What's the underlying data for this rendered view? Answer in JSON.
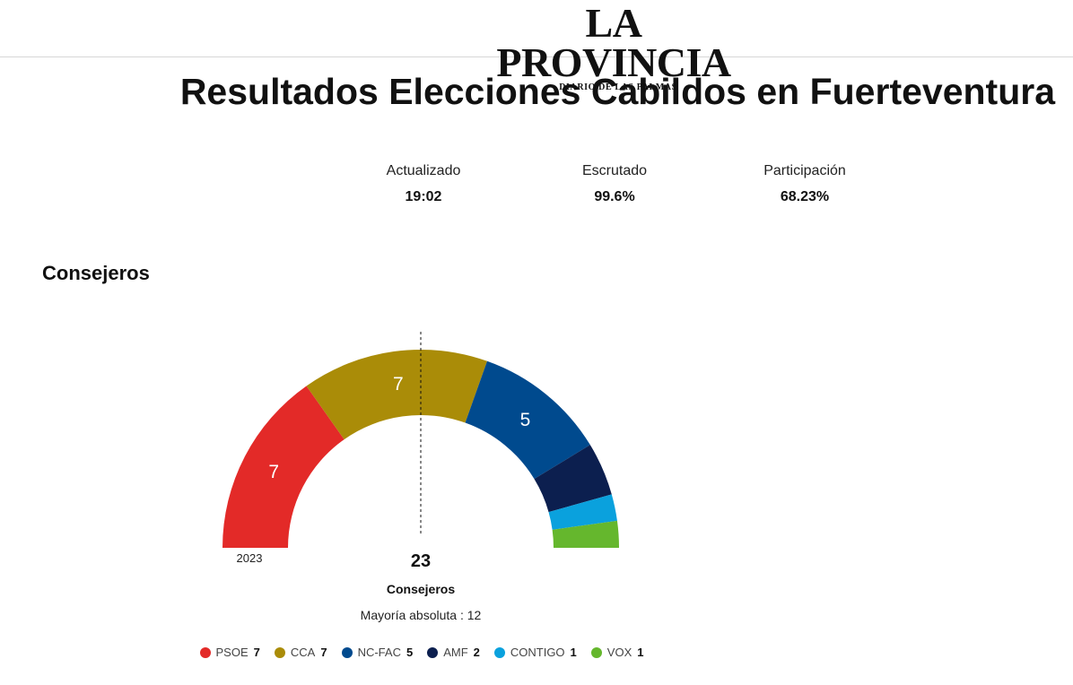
{
  "header": {
    "logo_text": "LA PROVINCIA",
    "logo_subtext": "DIARIO DE LAS PALMAS"
  },
  "page_title": "Resultados Elecciones Cabildos en Fuerteventura",
  "stats": [
    {
      "label": "Actualizado",
      "value": "19:02"
    },
    {
      "label": "Escrutado",
      "value": "99.6%"
    },
    {
      "label": "Participación",
      "value": "68.23%"
    }
  ],
  "section_title": "Consejeros",
  "chart_data": {
    "type": "pie",
    "subtype": "hemicycle",
    "year_label": "2023",
    "total": 23,
    "total_label": "Consejeros",
    "majority_text": "Mayoría absoluta : 12",
    "majority_seats": 12,
    "categories": [
      "PSOE",
      "CCA",
      "NC-FAC",
      "AMF",
      "CONTIGO",
      "VOX"
    ],
    "values": [
      7,
      7,
      5,
      2,
      1,
      1
    ],
    "colors": [
      "#e32a28",
      "#aa8c08",
      "#004a8e",
      "#0c1f4f",
      "#0aa1dd",
      "#65b72d"
    ]
  }
}
